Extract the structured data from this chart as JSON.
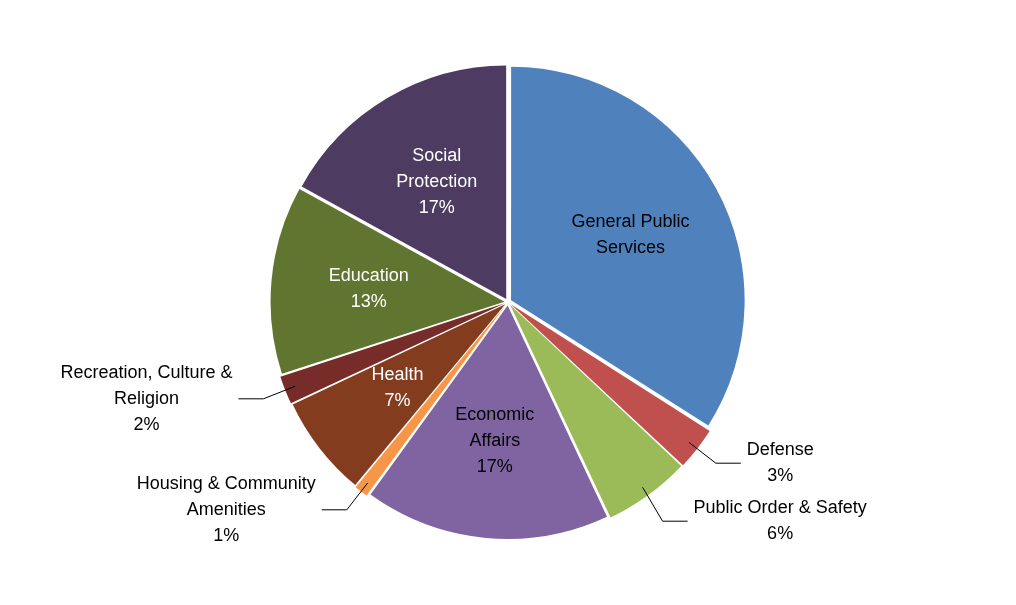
{
  "chart_data": {
    "type": "pie",
    "categories": [
      "General Public Services",
      "Defense",
      "Public Order & Safety",
      "Economic Affairs",
      "Housing & Community Amenities",
      "Health",
      "Recreation, Culture & Religion",
      "Education",
      "Social Protection"
    ],
    "values": [
      34,
      3,
      6,
      17,
      1,
      7,
      2,
      13,
      17
    ],
    "value_labels": [
      null,
      "3%",
      "6%",
      "17%",
      "1%",
      "7%",
      "2%",
      "13%",
      "17%"
    ],
    "colors": [
      "#4f81bd",
      "#c0504d",
      "#9bbb59",
      "#8064a2",
      "#f79646",
      "#843c1f",
      "#772c2a",
      "#5f7530",
      "#4d3b62"
    ],
    "legend": false
  }
}
